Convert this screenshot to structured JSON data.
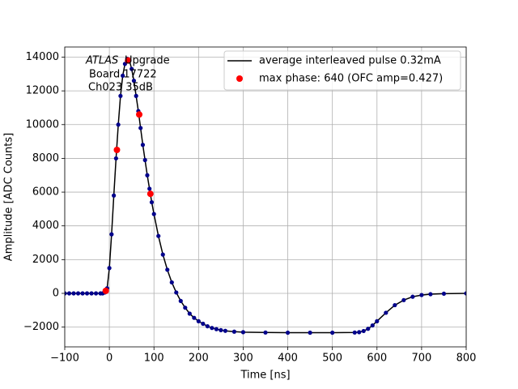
{
  "chart_data": {
    "type": "line",
    "x_label": "Time [ns]",
    "y_label": "Amplitude [ADC Counts]",
    "annotation": {
      "italic": "ATLAS",
      "rest": "Upgrade",
      "line2": "Board 17722",
      "line3": "Ch023 35dB"
    },
    "x": [
      -100,
      -90,
      -80,
      -70,
      -60,
      -50,
      -40,
      -30,
      -20,
      -15,
      -10,
      -5,
      0,
      5,
      10,
      15,
      20,
      25,
      30,
      35,
      40,
      45,
      50,
      55,
      60,
      65,
      70,
      75,
      80,
      85,
      90,
      95,
      100,
      110,
      120,
      130,
      140,
      150,
      160,
      170,
      180,
      190,
      200,
      210,
      220,
      230,
      240,
      250,
      260,
      280,
      300,
      350,
      400,
      450,
      500,
      550,
      560,
      570,
      580,
      590,
      600,
      620,
      640,
      660,
      680,
      700,
      720,
      750,
      800
    ],
    "series": [
      {
        "name": "average interleaved pulse 0.32mA",
        "color": "#000000",
        "marker_color": "#00008b",
        "values": [
          0,
          0,
          0,
          0,
          0,
          0,
          0,
          0,
          0,
          0,
          50,
          300,
          1500,
          3500,
          5800,
          8000,
          10000,
          11700,
          12900,
          13600,
          13900,
          13800,
          13300,
          12600,
          11700,
          10800,
          9800,
          8800,
          7900,
          7000,
          6200,
          5400,
          4700,
          3400,
          2300,
          1400,
          650,
          50,
          -450,
          -850,
          -1200,
          -1450,
          -1650,
          -1800,
          -1950,
          -2050,
          -2120,
          -2180,
          -2220,
          -2270,
          -2300,
          -2320,
          -2330,
          -2330,
          -2330,
          -2320,
          -2300,
          -2230,
          -2100,
          -1900,
          -1650,
          -1150,
          -700,
          -400,
          -200,
          -100,
          -50,
          -20,
          0
        ]
      },
      {
        "name": "max phase: 640 (OFC amp=0.427)",
        "color": "#ff0000",
        "x": [
          -8,
          17,
          42,
          67,
          92
        ],
        "values": [
          150,
          8500,
          13800,
          10600,
          5900
        ]
      }
    ],
    "xlim": [
      -100,
      800
    ],
    "ylim": [
      -3170,
      14600
    ],
    "xticks": [
      {
        "value": -100,
        "label": "−100"
      },
      0,
      100,
      200,
      300,
      400,
      500,
      600,
      700,
      800
    ],
    "yticks": [
      {
        "value": -2000,
        "label": "−2000"
      },
      0,
      2000,
      4000,
      6000,
      8000,
      10000,
      12000,
      14000
    ],
    "grid": true,
    "legend": "upper right"
  }
}
